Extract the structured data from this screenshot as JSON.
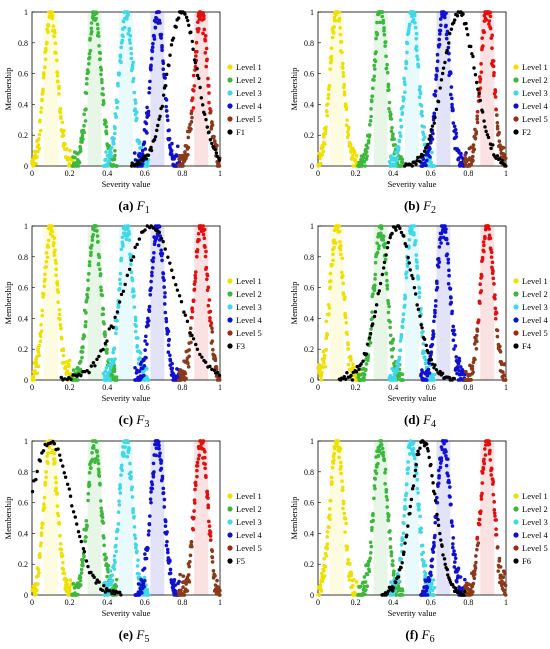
{
  "figure": {
    "panels": [
      {
        "label": "(a)",
        "caption_main": "F",
        "caption_sub": "1"
      },
      {
        "label": "(b)",
        "caption_main": "F",
        "caption_sub": "2"
      },
      {
        "label": "(c)",
        "caption_main": "F",
        "caption_sub": "3"
      },
      {
        "label": "(d)",
        "caption_main": "F",
        "caption_sub": "4"
      },
      {
        "label": "(e)",
        "caption_main": "F",
        "caption_sub": "5"
      },
      {
        "label": "(f)",
        "caption_main": "F",
        "caption_sub": "6"
      }
    ]
  },
  "chart_data": [
    {
      "type": "scatter",
      "panel": "a",
      "xlabel": "Severity value",
      "ylabel": "Membership",
      "xlim": [
        0,
        1
      ],
      "ylim": [
        0,
        1
      ],
      "xticks": [
        "0",
        "0.2",
        "0.4",
        "0.6",
        "0.8",
        "1"
      ],
      "yticks": [
        "0",
        "0.2",
        "0.4",
        "0.6",
        "0.8",
        "1"
      ],
      "legend_position": "right",
      "series": [
        {
          "name": "Level 1",
          "color": "#f0e000",
          "mean": 0.1,
          "sigma": 0.035
        },
        {
          "name": "Level 2",
          "color": "#3cb83c",
          "mean": 0.333,
          "sigma": 0.035
        },
        {
          "name": "Level 3",
          "color": "#40d8e8",
          "mean": 0.5,
          "sigma": 0.035
        },
        {
          "name": "Level 4",
          "color": "#1010d0",
          "mean": 0.667,
          "sigma": 0.035
        },
        {
          "name": "Level 5",
          "color": "#8a3a1a",
          "peak_color": "#e01010",
          "mean": 0.9,
          "sigma": 0.035
        },
        {
          "name": "F1",
          "color": "#000000",
          "mean": 0.8,
          "sigma": 0.08
        }
      ]
    },
    {
      "type": "scatter",
      "panel": "b",
      "xlabel": "Severity value",
      "ylabel": "Membership",
      "xlim": [
        0,
        1
      ],
      "ylim": [
        0,
        1
      ],
      "xticks": [
        "0",
        "0.2",
        "0.4",
        "0.6",
        "0.8",
        "1"
      ],
      "yticks": [
        "0",
        "0.2",
        "0.4",
        "0.6",
        "0.8",
        "1"
      ],
      "legend_position": "right",
      "series": [
        {
          "name": "Level 1",
          "color": "#f0e000",
          "mean": 0.1,
          "sigma": 0.035
        },
        {
          "name": "Level 2",
          "color": "#3cb83c",
          "mean": 0.333,
          "sigma": 0.035
        },
        {
          "name": "Level 3",
          "color": "#40d8e8",
          "mean": 0.5,
          "sigma": 0.035
        },
        {
          "name": "Level 4",
          "color": "#1010d0",
          "mean": 0.667,
          "sigma": 0.035
        },
        {
          "name": "Level 5",
          "color": "#8a3a1a",
          "peak_color": "#e01010",
          "mean": 0.9,
          "sigma": 0.035
        },
        {
          "name": "F2",
          "color": "#000000",
          "mean": 0.75,
          "sigma": 0.085
        }
      ]
    },
    {
      "type": "scatter",
      "panel": "c",
      "xlabel": "Severity value",
      "ylabel": "Membership",
      "xlim": [
        0,
        1
      ],
      "ylim": [
        0,
        1
      ],
      "xticks": [
        "0",
        "0.2",
        "0.4",
        "0.6",
        "0.8",
        "1"
      ],
      "yticks": [
        "0",
        "0.2",
        "0.4",
        "0.6",
        "0.8",
        "1"
      ],
      "legend_position": "right",
      "series": [
        {
          "name": "Level 1",
          "color": "#f0e000",
          "mean": 0.1,
          "sigma": 0.035
        },
        {
          "name": "Level 2",
          "color": "#3cb83c",
          "mean": 0.333,
          "sigma": 0.035
        },
        {
          "name": "Level 3",
          "color": "#40d8e8",
          "mean": 0.5,
          "sigma": 0.035
        },
        {
          "name": "Level 4",
          "color": "#1010d0",
          "mean": 0.667,
          "sigma": 0.035
        },
        {
          "name": "Level 5",
          "color": "#8a3a1a",
          "peak_color": "#e01010",
          "mean": 0.9,
          "sigma": 0.035
        },
        {
          "name": "F3",
          "color": "#000000",
          "mean": 0.63,
          "sigma": 0.14
        }
      ]
    },
    {
      "type": "scatter",
      "panel": "d",
      "xlabel": "Severity value",
      "ylabel": "Membership",
      "xlim": [
        0,
        1
      ],
      "ylim": [
        0,
        1
      ],
      "xticks": [
        "0",
        "0.2",
        "0.4",
        "0.6",
        "0.8",
        "1"
      ],
      "yticks": [
        "0",
        "0.2",
        "0.4",
        "0.6",
        "0.8",
        "1"
      ],
      "legend_position": "right",
      "series": [
        {
          "name": "Level 1",
          "color": "#f0e000",
          "mean": 0.1,
          "sigma": 0.035
        },
        {
          "name": "Level 2",
          "color": "#3cb83c",
          "mean": 0.333,
          "sigma": 0.035
        },
        {
          "name": "Level 3",
          "color": "#40d8e8",
          "mean": 0.5,
          "sigma": 0.035
        },
        {
          "name": "Level 4",
          "color": "#1010d0",
          "mean": 0.667,
          "sigma": 0.035
        },
        {
          "name": "Level 5",
          "color": "#8a3a1a",
          "peak_color": "#e01010",
          "mean": 0.9,
          "sigma": 0.035
        },
        {
          "name": "F4",
          "color": "#000000",
          "mean": 0.42,
          "sigma": 0.09
        }
      ]
    },
    {
      "type": "scatter",
      "panel": "e",
      "xlabel": "Severity value",
      "ylabel": "Membership",
      "xlim": [
        0,
        1
      ],
      "ylim": [
        0,
        1
      ],
      "xticks": [
        "0",
        "0.2",
        "0.4",
        "0.6",
        "0.8",
        "1"
      ],
      "yticks": [
        "0",
        "0.2",
        "0.4",
        "0.6",
        "0.8",
        "1"
      ],
      "legend_position": "right",
      "series": [
        {
          "name": "Level 1",
          "color": "#f0e000",
          "mean": 0.1,
          "sigma": 0.035
        },
        {
          "name": "Level 2",
          "color": "#3cb83c",
          "mean": 0.333,
          "sigma": 0.035
        },
        {
          "name": "Level 3",
          "color": "#40d8e8",
          "mean": 0.5,
          "sigma": 0.035
        },
        {
          "name": "Level 4",
          "color": "#1010d0",
          "mean": 0.667,
          "sigma": 0.035
        },
        {
          "name": "Level 5",
          "color": "#8a3a1a",
          "peak_color": "#e01010",
          "mean": 0.9,
          "sigma": 0.035
        },
        {
          "name": "F5",
          "color": "#000000",
          "mean": 0.1,
          "sigma": 0.11
        }
      ]
    },
    {
      "type": "scatter",
      "panel": "f",
      "xlabel": "Severity value",
      "ylabel": "Membership",
      "xlim": [
        0,
        1
      ],
      "ylim": [
        0,
        1
      ],
      "xticks": [
        "0",
        "0.2",
        "0.4",
        "0.6",
        "0.8",
        "1"
      ],
      "yticks": [
        "0",
        "0.2",
        "0.4",
        "0.6",
        "0.8",
        "1"
      ],
      "legend_position": "right",
      "series": [
        {
          "name": "Level 1",
          "color": "#f0e000",
          "mean": 0.1,
          "sigma": 0.035
        },
        {
          "name": "Level 2",
          "color": "#3cb83c",
          "mean": 0.333,
          "sigma": 0.035
        },
        {
          "name": "Level 3",
          "color": "#40d8e8",
          "mean": 0.5,
          "sigma": 0.035
        },
        {
          "name": "Level 4",
          "color": "#1010d0",
          "mean": 0.667,
          "sigma": 0.035
        },
        {
          "name": "Level 5",
          "color": "#8a3a1a",
          "peak_color": "#e01010",
          "mean": 0.9,
          "sigma": 0.035
        },
        {
          "name": "F6",
          "color": "#000000",
          "mean": 0.56,
          "sigma": 0.065
        }
      ]
    }
  ]
}
